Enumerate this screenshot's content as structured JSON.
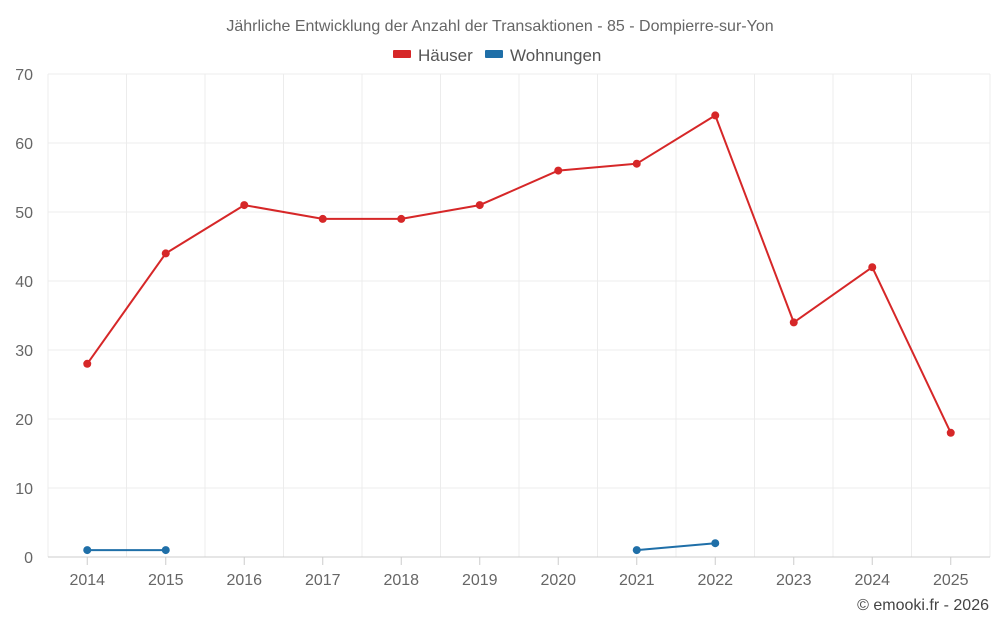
{
  "chart_data": {
    "type": "line",
    "title": "Jährliche Entwicklung der Anzahl der Transaktionen - 85 - Dompierre-sur-Yon",
    "categories": [
      "2014",
      "2015",
      "2016",
      "2017",
      "2018",
      "2019",
      "2020",
      "2021",
      "2022",
      "2023",
      "2024",
      "2025"
    ],
    "ylim": [
      0,
      70
    ],
    "yticks": [
      0,
      10,
      20,
      30,
      40,
      50,
      60,
      70
    ],
    "grid": true,
    "legend_position": "top-center",
    "series": [
      {
        "name": "Häuser",
        "color": "#d62728",
        "values": [
          28,
          44,
          51,
          49,
          49,
          51,
          56,
          57,
          64,
          34,
          42,
          18
        ]
      },
      {
        "name": "Wohnungen",
        "color": "#1f6fa8",
        "values": [
          1,
          1,
          null,
          null,
          null,
          null,
          null,
          1,
          2,
          null,
          null,
          null
        ]
      }
    ],
    "xlabel": "",
    "ylabel": ""
  },
  "credit": "© emooki.fr - 2026"
}
